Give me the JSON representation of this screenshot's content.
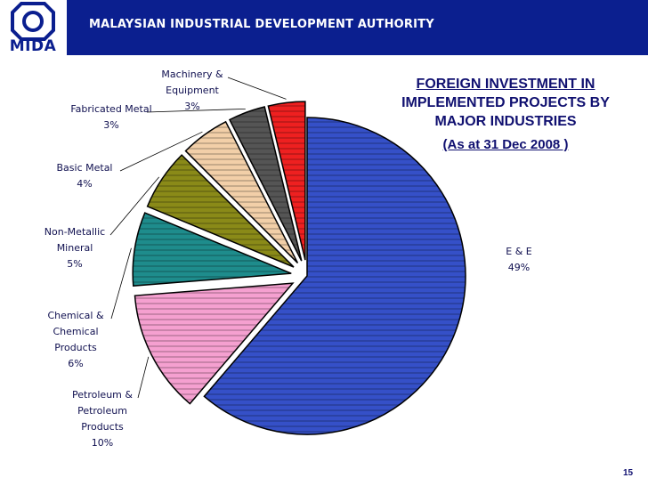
{
  "header": {
    "title": "MALAYSIAN INDUSTRIAL DEVELOPMENT AUTHORITY",
    "logo_text": "MIDA"
  },
  "page_number": "15",
  "colors": {
    "header_bg": "#0b1f8f",
    "title_text": "#101070"
  },
  "chart_data": {
    "type": "pie",
    "title_lines": [
      "FOREIGN INVESTMENT IN",
      "IMPLEMENTED PROJECTS BY",
      "MAJOR INDUSTRIES"
    ],
    "subtitle": "(As at 31 Dec 2008 )",
    "slices": [
      {
        "label_lines": [
          "E & E"
        ],
        "pct_label": "49%",
        "value": 49,
        "color": "#3550c8"
      },
      {
        "label_lines": [
          "Petroleum &",
          "Petroleum",
          "Products"
        ],
        "pct_label": "10%",
        "value": 10,
        "color": "#f5a0d0"
      },
      {
        "label_lines": [
          "Chemical &",
          "Chemical",
          "Products"
        ],
        "pct_label": "6%",
        "value": 6,
        "color": "#1e8c8c"
      },
      {
        "label_lines": [
          "Non-Metallic",
          "Mineral"
        ],
        "pct_label": "5%",
        "value": 5,
        "color": "#8a8a18"
      },
      {
        "label_lines": [
          "Basic Metal"
        ],
        "pct_label": "4%",
        "value": 4,
        "color": "#f2cfa8"
      },
      {
        "label_lines": [
          "Fabricated Metal"
        ],
        "pct_label": "3%",
        "value": 3,
        "color": "#555555"
      },
      {
        "label_lines": [
          "Machinery &",
          "Equipment"
        ],
        "pct_label": "3%",
        "value": 3,
        "color": "#ee2020"
      }
    ]
  }
}
